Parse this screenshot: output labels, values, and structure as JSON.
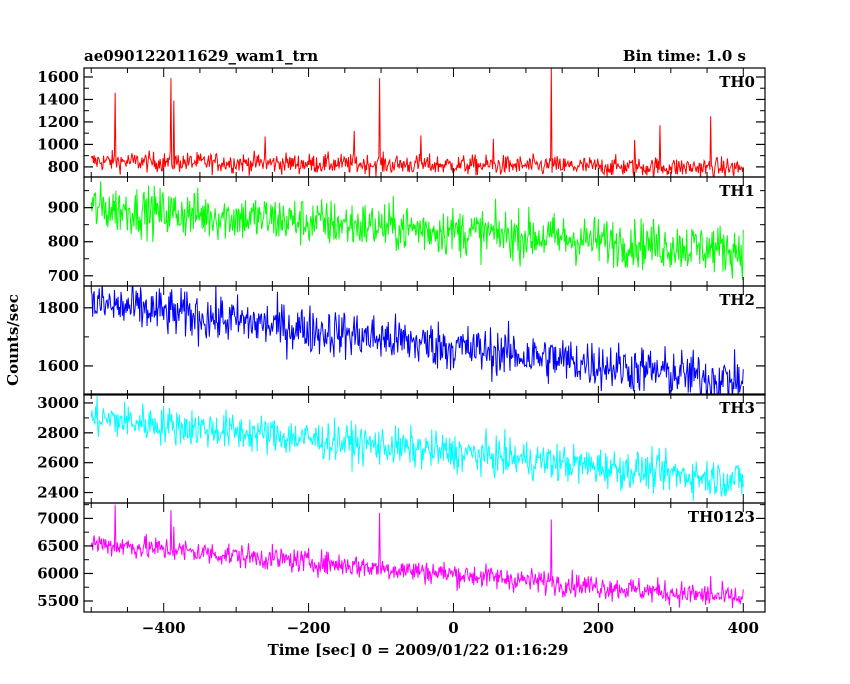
{
  "chart_data": {
    "type": "line",
    "title": "ae090122011629_wam1_trn",
    "subtitle": "Bin time: 1.0 s",
    "xlabel": "Time [sec] 0 = 2009/01/22 01:16:29",
    "ylabel": "Counts/sec",
    "xlim": [
      -510,
      430
    ],
    "x_ticks": [
      "−400",
      "−200",
      "0",
      "200",
      "400"
    ],
    "x_tick_values": [
      -400,
      -200,
      0,
      200,
      400
    ],
    "grid": false,
    "panels": [
      {
        "name": "TH0",
        "color": "#ff0000",
        "ylim": [
          710,
          1680
        ],
        "y_ticks": [
          "800",
          "1000",
          "1200",
          "1400",
          "1600"
        ],
        "y_tick_values": [
          800,
          1000,
          1200,
          1400,
          1600
        ],
        "trend": [
          [
            -500,
            850
          ],
          [
            400,
            790
          ]
        ],
        "noise": 45,
        "spikes": [
          [
            -467,
            1460
          ],
          [
            -390,
            1590
          ],
          [
            -386,
            1390
          ],
          [
            -260,
            1070
          ],
          [
            -137,
            1120
          ],
          [
            -102,
            1590
          ],
          [
            -45,
            1080
          ],
          [
            55,
            1050
          ],
          [
            135,
            1690
          ],
          [
            250,
            1040
          ],
          [
            285,
            1170
          ],
          [
            355,
            1250
          ]
        ]
      },
      {
        "name": "TH1",
        "color": "#00ff00",
        "ylim": [
          670,
          990
        ],
        "y_ticks": [
          "700",
          "800",
          "900"
        ],
        "y_tick_values": [
          700,
          800,
          900
        ],
        "trend": [
          [
            -500,
            900
          ],
          [
            400,
            775
          ]
        ],
        "noise": 36,
        "spikes": []
      },
      {
        "name": "TH2",
        "color": "#0000ff",
        "ylim": [
          1500,
          1875
        ],
        "y_ticks": [
          "1600",
          "1800"
        ],
        "y_tick_values": [
          1600,
          1800
        ],
        "trend": [
          [
            -500,
            1815
          ],
          [
            400,
            1545
          ]
        ],
        "noise": 42,
        "spikes": []
      },
      {
        "name": "TH3",
        "color": "#00ffff",
        "ylim": [
          2330,
          3060
        ],
        "y_ticks": [
          "2400",
          "2600",
          "2800",
          "3000"
        ],
        "y_tick_values": [
          2400,
          2600,
          2800,
          3000
        ],
        "trend": [
          [
            -500,
            2900
          ],
          [
            400,
            2480
          ]
        ],
        "noise": 65,
        "spikes": []
      },
      {
        "name": "TH0123",
        "color": "#ff00ff",
        "ylim": [
          5300,
          7280
        ],
        "y_ticks": [
          "5500",
          "6000",
          "6500",
          "7000"
        ],
        "y_tick_values": [
          5500,
          6000,
          6500,
          7000
        ],
        "trend": [
          [
            -500,
            6550
          ],
          [
            400,
            5540
          ]
        ],
        "noise": 110,
        "spikes": [
          [
            -467,
            7250
          ],
          [
            -390,
            7150
          ],
          [
            -386,
            6850
          ],
          [
            -102,
            7100
          ],
          [
            135,
            6980
          ],
          [
            355,
            5950
          ]
        ]
      }
    ]
  }
}
